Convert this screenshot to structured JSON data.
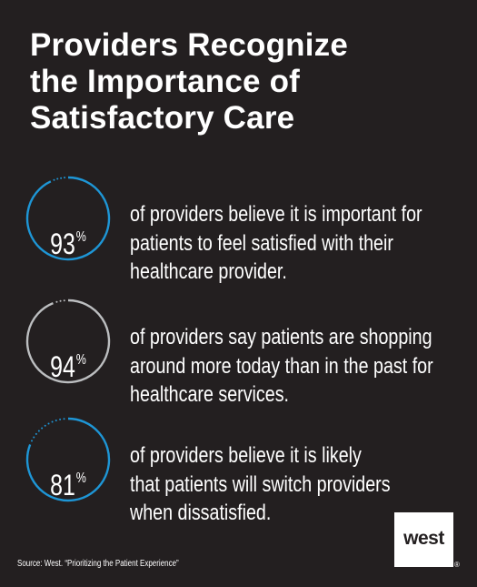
{
  "title_lines": [
    "Providers Recognize",
    "the Importance of",
    "Satisfactory Care"
  ],
  "chart_data": {
    "type": "donut-stats",
    "stats": [
      {
        "value": 93,
        "value_text": "93",
        "unit": "%",
        "color": "#1e96d6",
        "description_lines": [
          "of providers believe it is important for",
          "patients to feel satisfied with their",
          "healthcare provider."
        ]
      },
      {
        "value": 94,
        "value_text": "94",
        "unit": "%",
        "color": "#bcbec0",
        "description_lines": [
          "of providers say patients are shopping",
          "around more today than in the past for",
          "healthcare services."
        ]
      },
      {
        "value": 81,
        "value_text": "81",
        "unit": "%",
        "color": "#1e96d6",
        "description_lines": [
          "of providers believe it is likely",
          "that patients will switch providers",
          "when dissatisfied."
        ]
      }
    ]
  },
  "source": "Source:  West. “Prioritizing the Patient Experience”",
  "logo": {
    "text": "west",
    "mark": "®"
  }
}
